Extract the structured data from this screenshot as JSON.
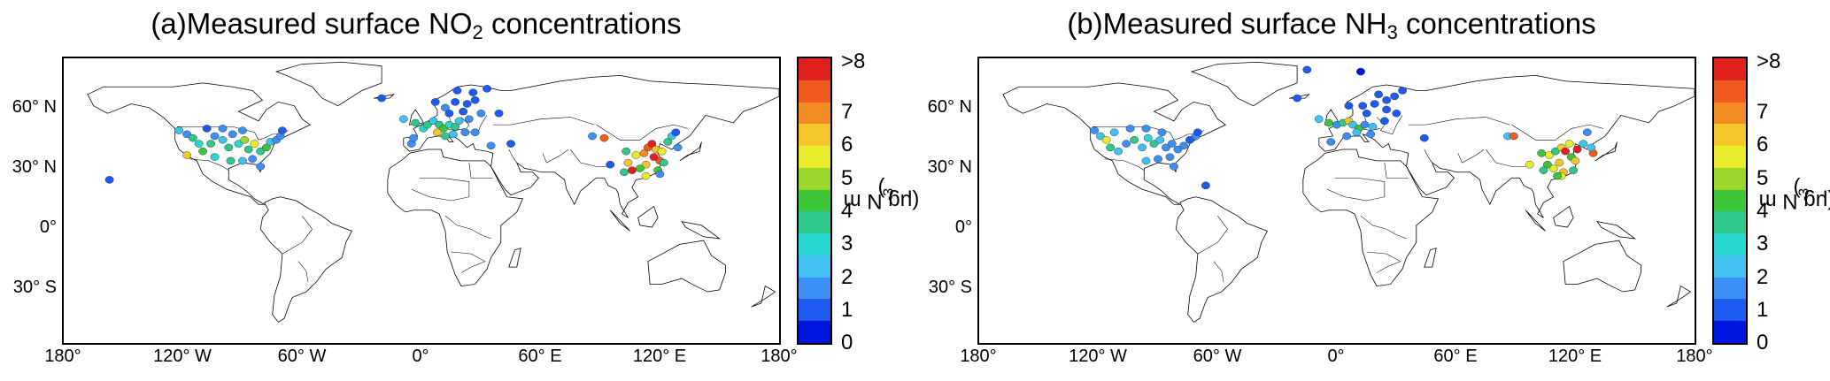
{
  "colorbar": {
    "colors": [
      "#0014e0",
      "#1f5af0",
      "#3d8ef5",
      "#41c0f2",
      "#27d7cf",
      "#2ec98a",
      "#3ec63a",
      "#9bd62a",
      "#e8ec2a",
      "#f5c62b",
      "#f38c24",
      "#ee5a1f",
      "#e0201c"
    ],
    "tick_labels": [
      "0",
      "1",
      "2",
      "3",
      "4",
      "5",
      "6",
      "7",
      ">8"
    ],
    "unit_main": "(μg N m",
    "unit_exp": "-3",
    "unit_close": ")"
  },
  "lat_labels": [
    "60° N",
    "30° N",
    "0°",
    "30° S"
  ],
  "lon_labels": [
    "180°",
    "120° W",
    "60° W",
    "0°",
    "60° E",
    "120° E",
    "180°"
  ],
  "panels": [
    {
      "title_main": "(a)Measured surface NO",
      "title_sub": "2",
      "title_tail": " concentrations",
      "sites": [
        [
          -157,
          21,
          0.8
        ],
        [
          -122,
          47,
          2
        ],
        [
          -118,
          45,
          1.5
        ],
        [
          -115,
          43,
          3
        ],
        [
          -112,
          40,
          2.5
        ],
        [
          -110,
          36,
          4
        ],
        [
          -106,
          40,
          3
        ],
        [
          -104,
          44,
          1.5
        ],
        [
          -100,
          42,
          2
        ],
        [
          -97,
          38,
          3
        ],
        [
          -95,
          45,
          1
        ],
        [
          -92,
          40,
          2.5
        ],
        [
          -89,
          42,
          4.5
        ],
        [
          -87,
          37,
          3
        ],
        [
          -84,
          40,
          5
        ],
        [
          -81,
          36,
          3.5
        ],
        [
          -78,
          38,
          4
        ],
        [
          -76,
          41,
          2
        ],
        [
          -73,
          42,
          1.5
        ],
        [
          -71,
          44,
          1
        ],
        [
          -118,
          34,
          6
        ],
        [
          -104,
          33,
          2.5
        ],
        [
          -96,
          31,
          3
        ],
        [
          -90,
          31,
          2
        ],
        [
          -85,
          32,
          1.5
        ],
        [
          -81,
          28,
          1
        ],
        [
          -108,
          48,
          0.8
        ],
        [
          -100,
          48,
          1
        ],
        [
          -90,
          47,
          1.2
        ],
        [
          -70,
          47,
          0.7
        ],
        [
          -9,
          53,
          2
        ],
        [
          -3,
          51,
          3
        ],
        [
          1,
          48,
          2.5
        ],
        [
          3,
          50,
          3.5
        ],
        [
          6,
          52,
          2
        ],
        [
          9,
          50,
          3
        ],
        [
          11,
          48,
          4
        ],
        [
          14,
          50,
          2.5
        ],
        [
          17,
          49,
          3
        ],
        [
          19,
          52,
          2
        ],
        [
          24,
          53,
          1.5
        ],
        [
          8,
          46,
          6
        ],
        [
          12,
          44,
          3
        ],
        [
          -5,
          40,
          1.5
        ],
        [
          -4,
          43,
          1
        ],
        [
          16,
          45,
          2
        ],
        [
          22,
          46,
          1.5
        ],
        [
          27,
          46,
          1
        ],
        [
          35,
          39,
          1
        ],
        [
          45,
          40,
          0.8
        ],
        [
          7,
          62,
          0.5
        ],
        [
          12,
          59,
          1
        ],
        [
          17,
          62,
          0.6
        ],
        [
          23,
          61,
          0.8
        ],
        [
          27,
          63,
          0.5
        ],
        [
          26,
          67,
          0.4
        ],
        [
          30,
          56,
          1
        ],
        [
          21,
          57,
          0.8
        ],
        [
          14,
          56,
          0.9
        ],
        [
          18,
          68,
          0.5
        ],
        [
          39,
          56,
          0.8
        ],
        [
          33,
          69,
          0.5
        ],
        [
          -20,
          64,
          0.7
        ],
        [
          86,
          44,
          1.2
        ],
        [
          92,
          43,
          7.5
        ],
        [
          103,
          36,
          3
        ],
        [
          108,
          34,
          5
        ],
        [
          112,
          35,
          6.5
        ],
        [
          114,
          38,
          7
        ],
        [
          116,
          40,
          8
        ],
        [
          118,
          37,
          6
        ],
        [
          120,
          31,
          7
        ],
        [
          121,
          36,
          5
        ],
        [
          117,
          33,
          8
        ],
        [
          113,
          29,
          6
        ],
        [
          110,
          27,
          4
        ],
        [
          106,
          26,
          8
        ],
        [
          104,
          30,
          6
        ],
        [
          102,
          25,
          3
        ],
        [
          113,
          23,
          5
        ],
        [
          119,
          26,
          4
        ],
        [
          120,
          24,
          1.5
        ],
        [
          122,
          30,
          3
        ],
        [
          124,
          41,
          3
        ],
        [
          126,
          44,
          2
        ],
        [
          128,
          46,
          0.8
        ],
        [
          129,
          38,
          1
        ],
        [
          95,
          29,
          0.5
        ]
      ]
    },
    {
      "title_main": "(b)Measured surface NH",
      "title_sub": "3",
      "title_tail": " concentrations",
      "sites": [
        [
          -122,
          47,
          1
        ],
        [
          -119,
          44,
          2
        ],
        [
          -116,
          42,
          5
        ],
        [
          -114,
          38,
          3
        ],
        [
          -110,
          36,
          2
        ],
        [
          -106,
          40,
          1
        ],
        [
          -102,
          42,
          3
        ],
        [
          -98,
          38,
          2
        ],
        [
          -95,
          43,
          2.5
        ],
        [
          -92,
          40,
          3
        ],
        [
          -89,
          42,
          2
        ],
        [
          -86,
          38,
          1.5
        ],
        [
          -83,
          40,
          1
        ],
        [
          -80,
          37,
          1.5
        ],
        [
          -77,
          39,
          1
        ],
        [
          -74,
          42,
          0.8
        ],
        [
          -71,
          44,
          1
        ],
        [
          -96,
          31,
          2
        ],
        [
          -90,
          32,
          1
        ],
        [
          -84,
          33,
          1
        ],
        [
          -82,
          28,
          1
        ],
        [
          -66,
          18,
          0.8
        ],
        [
          -104,
          48,
          1
        ],
        [
          -96,
          48,
          1.5
        ],
        [
          -88,
          46,
          1
        ],
        [
          -70,
          46,
          0.7
        ],
        [
          -112,
          46,
          2
        ],
        [
          -9,
          53,
          2
        ],
        [
          -4,
          51,
          4
        ],
        [
          0,
          50,
          1
        ],
        [
          3,
          51,
          3
        ],
        [
          6,
          52,
          6
        ],
        [
          8,
          50,
          2
        ],
        [
          11,
          48,
          4
        ],
        [
          14,
          50,
          1.5
        ],
        [
          18,
          49,
          2
        ],
        [
          10,
          46,
          2
        ],
        [
          -3,
          41,
          1
        ],
        [
          5,
          44,
          1.5
        ],
        [
          17,
          45,
          1
        ],
        [
          24,
          52,
          0.8
        ],
        [
          25,
          58,
          0.5
        ],
        [
          15,
          56,
          0.7
        ],
        [
          6,
          60,
          0.5
        ],
        [
          13,
          60,
          0.6
        ],
        [
          19,
          61,
          0.5
        ],
        [
          25,
          63,
          0.4
        ],
        [
          29,
          65,
          0.5
        ],
        [
          21,
          66,
          0.4
        ],
        [
          30,
          56,
          0.8
        ],
        [
          44,
          43,
          0.5
        ],
        [
          -15,
          79,
          0.4
        ],
        [
          12,
          78,
          0.3
        ],
        [
          -20,
          64,
          0.5
        ],
        [
          33,
          68,
          0.4
        ],
        [
          86,
          44,
          2
        ],
        [
          89,
          44,
          7.5
        ],
        [
          103,
          35,
          4
        ],
        [
          107,
          34,
          5
        ],
        [
          110,
          36,
          3
        ],
        [
          113,
          38,
          6
        ],
        [
          115,
          36,
          8
        ],
        [
          117,
          40,
          5
        ],
        [
          118,
          33,
          4
        ],
        [
          120,
          31,
          6
        ],
        [
          121,
          37,
          8
        ],
        [
          112,
          30,
          6
        ],
        [
          109,
          27,
          5
        ],
        [
          106,
          29,
          4
        ],
        [
          104,
          26,
          3
        ],
        [
          114,
          25,
          6
        ],
        [
          119,
          26,
          3
        ],
        [
          113,
          23,
          5
        ],
        [
          111,
          23,
          4
        ],
        [
          124,
          40,
          2
        ],
        [
          126,
          46,
          1
        ],
        [
          129,
          35,
          7.5
        ],
        [
          128,
          38,
          2
        ],
        [
          97,
          29,
          5
        ]
      ]
    }
  ]
}
